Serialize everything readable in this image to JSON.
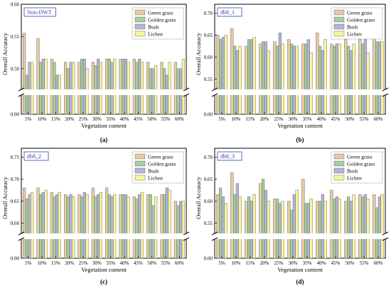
{
  "figure": {
    "colors": [
      "#e9c9a2",
      "#9fd29a",
      "#b7b4d9",
      "#f7f59c"
    ]
  },
  "chart_data": [
    {
      "panel_label": "(a)",
      "type": "bar",
      "title": "Non-DWT",
      "xlabel": "Vegetation content",
      "ylabel": "Overall Accuracy",
      "categories": [
        "5%",
        "10%",
        "15%",
        "20%",
        "25%",
        "30%",
        "35%",
        "40%",
        "45%",
        "50%",
        "55%",
        "60%"
      ],
      "yticks": [
        "0.00",
        "0.50",
        "0.55",
        "0.60"
      ],
      "ylim_upper": [
        0.47,
        0.6
      ],
      "axis_break": true,
      "legend_position": "top-right",
      "series": [
        {
          "name": "Green grass",
          "values": [
            0.555,
            0.547,
            0.515,
            0.51,
            0.51,
            0.51,
            0.515,
            0.515,
            0.515,
            0.51,
            0.51,
            0.51
          ]
        },
        {
          "name": "Golden grass",
          "values": [
            0.49,
            0.51,
            0.51,
            0.5,
            0.515,
            0.505,
            0.515,
            0.515,
            0.51,
            0.5,
            0.5,
            0.5
          ]
        },
        {
          "name": "Bush",
          "values": [
            0.51,
            0.515,
            0.49,
            0.51,
            0.515,
            0.515,
            0.51,
            0.515,
            0.515,
            0.5,
            0.49,
            0.5
          ]
        },
        {
          "name": "Lichen",
          "values": [
            0.51,
            0.515,
            0.49,
            0.51,
            0.5,
            0.51,
            0.515,
            0.51,
            0.51,
            0.505,
            0.51,
            0.515
          ]
        }
      ]
    },
    {
      "panel_label": "(b)",
      "type": "bar",
      "title": "db8_1",
      "xlabel": "Vegetation content",
      "ylabel": "Overall Accuracy",
      "categories": [
        "5%",
        "10%",
        "15%",
        "20%",
        "25%",
        "30%",
        "35%",
        "40%",
        "45%",
        "50%",
        "55%",
        "60%"
      ],
      "yticks": [
        "0.00",
        "0.55",
        "0.60",
        "0.65",
        "0.70"
      ],
      "ylim_upper": [
        0.53,
        0.72
      ],
      "axis_break": true,
      "legend_position": "top-right",
      "series": [
        {
          "name": "Green grass",
          "values": [
            0.65,
            0.665,
            0.625,
            0.63,
            0.635,
            0.64,
            0.63,
            0.655,
            0.63,
            0.64,
            0.64,
            0.655
          ]
        },
        {
          "name": "Golden grass",
          "values": [
            0.64,
            0.625,
            0.64,
            0.635,
            0.625,
            0.63,
            0.63,
            0.625,
            0.625,
            0.625,
            0.63,
            0.635
          ]
        },
        {
          "name": "Bush",
          "values": [
            0.645,
            0.615,
            0.64,
            0.635,
            0.655,
            0.625,
            0.64,
            0.615,
            0.63,
            0.615,
            0.64,
            0.635
          ]
        },
        {
          "name": "Lichen",
          "values": [
            0.65,
            0.625,
            0.645,
            0.615,
            0.63,
            0.625,
            0.61,
            0.64,
            0.63,
            0.63,
            0.61,
            0.635
          ]
        }
      ]
    },
    {
      "panel_label": "(c)",
      "type": "bar",
      "title": "db8_2",
      "xlabel": "Vegetation content",
      "ylabel": "Overall Accuracy",
      "categories": [
        "5%",
        "10%",
        "15%",
        "20%",
        "25%",
        "30%",
        "35%",
        "40%",
        "45%",
        "50%",
        "55%",
        "60%"
      ],
      "yticks": [
        "0.00",
        "0.60",
        "0.65",
        "0.70",
        "0.75"
      ],
      "ylim_upper": [
        0.58,
        0.77
      ],
      "axis_break": true,
      "legend_position": "top-right",
      "series": [
        {
          "name": "Green grass",
          "values": [
            0.68,
            0.68,
            0.67,
            0.665,
            0.665,
            0.68,
            0.68,
            0.665,
            0.66,
            0.665,
            0.665,
            0.65
          ]
        },
        {
          "name": "Golden grass",
          "values": [
            0.655,
            0.665,
            0.66,
            0.66,
            0.66,
            0.66,
            0.665,
            0.665,
            0.655,
            0.665,
            0.665,
            0.64
          ]
        },
        {
          "name": "Bush",
          "values": [
            0.665,
            0.67,
            0.665,
            0.665,
            0.67,
            0.665,
            0.66,
            0.665,
            0.665,
            0.64,
            0.68,
            0.65
          ]
        },
        {
          "name": "Lichen",
          "values": [
            0.67,
            0.675,
            0.67,
            0.66,
            0.665,
            0.67,
            0.665,
            0.66,
            0.67,
            0.66,
            0.675,
            0.65
          ]
        }
      ]
    },
    {
      "panel_label": "(d)",
      "type": "bar",
      "title": "db8_3",
      "xlabel": "Vegetation content",
      "ylabel": "Overall Accuracy",
      "categories": [
        "5%",
        "10%",
        "15%",
        "20%",
        "25%",
        "30%",
        "35%",
        "40%",
        "45%",
        "50%",
        "55%",
        "60%"
      ],
      "yticks": [
        "0.00",
        "0.55",
        "0.60",
        "0.65",
        "0.70"
      ],
      "ylim_upper": [
        0.53,
        0.72
      ],
      "axis_break": true,
      "legend_position": "top-right",
      "series": [
        {
          "name": "Green grass",
          "values": [
            0.615,
            0.665,
            0.6,
            0.64,
            0.605,
            0.6,
            0.65,
            0.6,
            0.625,
            0.6,
            0.615,
            0.615
          ]
        },
        {
          "name": "Golden grass",
          "values": [
            0.63,
            0.615,
            0.61,
            0.65,
            0.605,
            0.58,
            0.595,
            0.6,
            0.605,
            0.61,
            0.61,
            0.585
          ]
        },
        {
          "name": "Bush",
          "values": [
            0.61,
            0.64,
            0.6,
            0.625,
            0.595,
            0.615,
            0.595,
            0.615,
            0.61,
            0.6,
            0.615,
            0.61
          ]
        },
        {
          "name": "Lichen",
          "values": [
            0.595,
            0.61,
            0.615,
            0.6,
            0.6,
            0.625,
            0.605,
            0.6,
            0.605,
            0.615,
            0.605,
            0.615
          ]
        }
      ]
    }
  ]
}
